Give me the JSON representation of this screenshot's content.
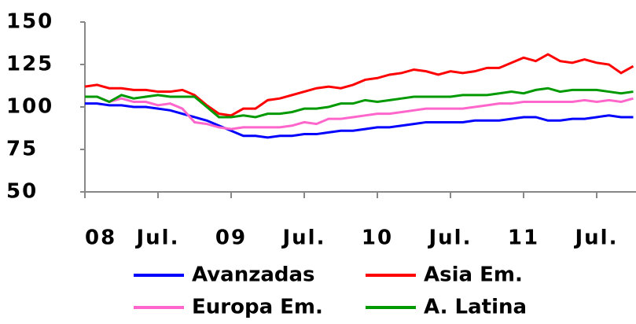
{
  "chart_data": {
    "type": "line",
    "categories": [
      "08",
      null,
      null,
      null,
      null,
      null,
      "Jul.",
      null,
      null,
      null,
      null,
      null,
      "09",
      null,
      null,
      null,
      null,
      null,
      "Jul.",
      null,
      null,
      null,
      null,
      null,
      "10",
      null,
      null,
      null,
      null,
      null,
      "Jul.",
      null,
      null,
      null,
      null,
      null,
      "11",
      null,
      null,
      null,
      null,
      null,
      "Jul.",
      null,
      null,
      null
    ],
    "series": [
      {
        "name": "Avanzadas",
        "color": "#0000ff",
        "values": [
          102,
          102,
          101,
          101,
          100,
          100,
          99,
          98,
          96,
          94,
          92,
          89,
          86,
          83,
          83,
          82,
          83,
          83,
          84,
          84,
          85,
          86,
          86,
          87,
          88,
          88,
          89,
          90,
          91,
          91,
          91,
          91,
          92,
          92,
          92,
          93,
          94,
          94,
          92,
          92,
          93,
          93,
          94,
          95,
          94,
          94
        ]
      },
      {
        "name": "Asia Em.",
        "color": "#ff0000",
        "values": [
          112,
          113,
          111,
          111,
          110,
          110,
          109,
          109,
          110,
          107,
          101,
          96,
          95,
          99,
          99,
          104,
          105,
          107,
          109,
          111,
          112,
          111,
          113,
          116,
          117,
          119,
          120,
          122,
          121,
          119,
          121,
          120,
          121,
          123,
          123,
          126,
          129,
          127,
          131,
          127,
          126,
          128,
          126,
          125,
          120,
          124
        ]
      },
      {
        "name": "Europa Em.",
        "color": "#ff66cc",
        "values": [
          106,
          106,
          103,
          105,
          103,
          103,
          101,
          102,
          99,
          91,
          90,
          88,
          87,
          88,
          88,
          88,
          88,
          89,
          91,
          90,
          93,
          93,
          94,
          95,
          96,
          96,
          97,
          98,
          99,
          99,
          99,
          99,
          100,
          101,
          102,
          102,
          103,
          103,
          103,
          103,
          103,
          104,
          103,
          104,
          103,
          105
        ]
      },
      {
        "name": "A. Latina",
        "color": "#009900",
        "values": [
          106,
          106,
          103,
          107,
          105,
          106,
          107,
          106,
          106,
          106,
          100,
          94,
          94,
          95,
          94,
          96,
          96,
          97,
          99,
          99,
          100,
          102,
          102,
          104,
          103,
          104,
          105,
          106,
          106,
          106,
          106,
          107,
          107,
          107,
          108,
          109,
          108,
          110,
          111,
          109,
          110,
          110,
          110,
          109,
          108,
          109
        ]
      }
    ],
    "ylim": [
      50,
      150
    ],
    "yticks": [
      50,
      75,
      100,
      125,
      150
    ],
    "grid": false
  }
}
